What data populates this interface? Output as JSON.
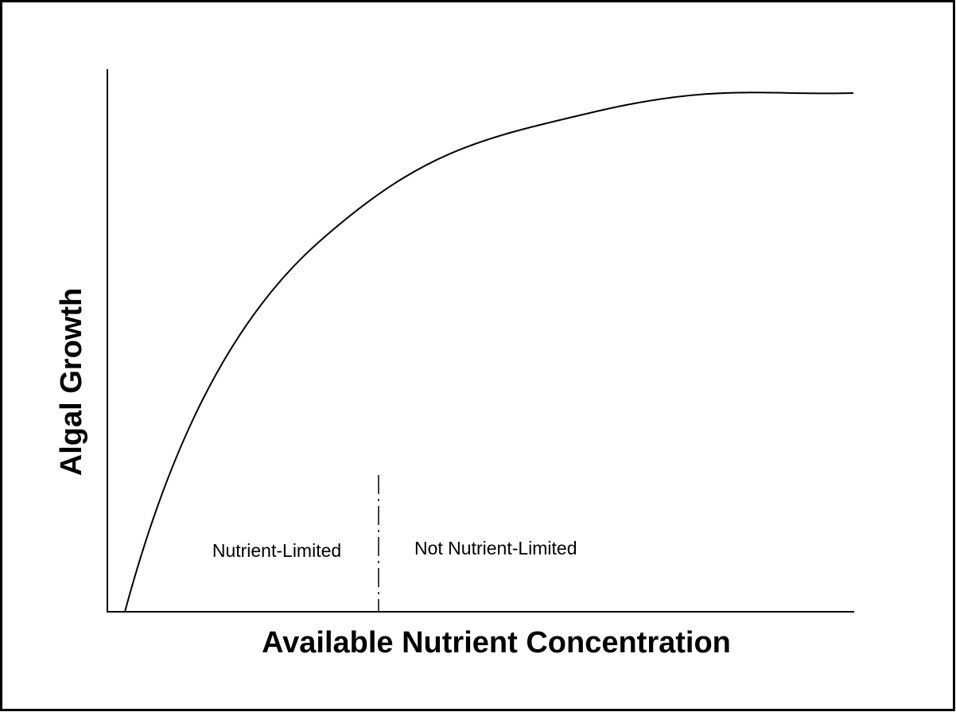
{
  "y_axis_label": "Algal Growth",
  "x_axis_label": "Available Nutrient Concentration",
  "annotations": [
    "Nutrient-Limited",
    "Not Nutrient-Limited"
  ]
}
